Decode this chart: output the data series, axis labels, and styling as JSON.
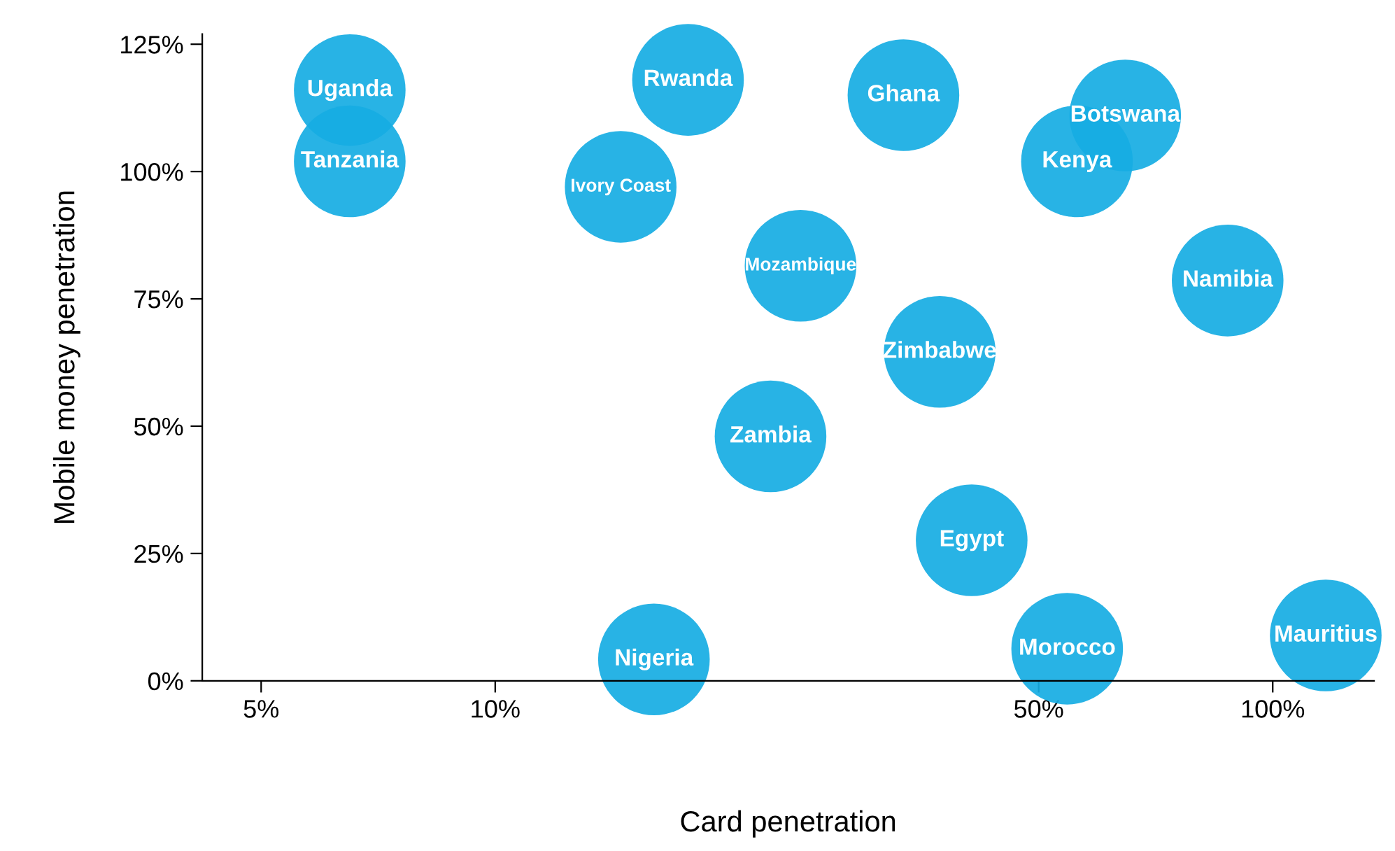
{
  "chart_data": {
    "type": "scatter",
    "xlabel": "Card penetration",
    "ylabel": "Mobile money penetration",
    "log": "x",
    "marker": "circle",
    "grid": false,
    "legend": false,
    "x": [
      6.5,
      6.5,
      17.7,
      33.5,
      64.6,
      56,
      14.5,
      24.7,
      87.5,
      37.3,
      22.6,
      41,
      16,
      54.4,
      117
    ],
    "series": [
      {
        "color": "#16ade3",
        "values": [
          116,
          102,
          118,
          115,
          111,
          102,
          97,
          81.5,
          78.6,
          64.6,
          48,
          27.6,
          4.2,
          6.3,
          8.9
        ]
      }
    ],
    "annotations": [
      {
        "text": "Uganda",
        "x": 6.5,
        "y": 116
      },
      {
        "text": "Tanzania",
        "x": 6.5,
        "y": 102
      },
      {
        "text": "Rwanda",
        "x": 17.7,
        "y": 118
      },
      {
        "text": "Ghana",
        "x": 33.5,
        "y": 115
      },
      {
        "text": "Botswana",
        "x": 64.6,
        "y": 111
      },
      {
        "text": "Kenya",
        "x": 56,
        "y": 102
      },
      {
        "text": "Ivory Coast",
        "x": 14.5,
        "y": 97
      },
      {
        "text": "Mozambique",
        "x": 24.7,
        "y": 81.5
      },
      {
        "text": "Namibia",
        "x": 87.5,
        "y": 78.6
      },
      {
        "text": "Zimbabwe",
        "x": 37.3,
        "y": 64.6
      },
      {
        "text": "Zambia",
        "x": 22.6,
        "y": 48
      },
      {
        "text": "Egypt",
        "x": 41,
        "y": 27.6
      },
      {
        "text": "Nigeria",
        "x": 16,
        "y": 4.2
      },
      {
        "text": "Morocco",
        "x": 54.4,
        "y": 6.3
      },
      {
        "text": "Mauritius",
        "x": 117,
        "y": 8.9
      }
    ],
    "xlim": [
      4.2,
      135
    ],
    "ylim": [
      0,
      127
    ],
    "xticks": [
      {
        "value": 5,
        "label": "5%"
      },
      {
        "value": 10,
        "label": "10%"
      },
      {
        "value": 50,
        "label": "50%"
      },
      {
        "value": 100,
        "label": "100%"
      }
    ],
    "yticks": [
      {
        "value": 0,
        "label": "0%"
      },
      {
        "value": 25,
        "label": "25%"
      },
      {
        "value": 50,
        "label": "50%"
      },
      {
        "value": 75,
        "label": "75%"
      },
      {
        "value": 100,
        "label": "100%"
      },
      {
        "value": 125,
        "label": "125%"
      }
    ]
  }
}
